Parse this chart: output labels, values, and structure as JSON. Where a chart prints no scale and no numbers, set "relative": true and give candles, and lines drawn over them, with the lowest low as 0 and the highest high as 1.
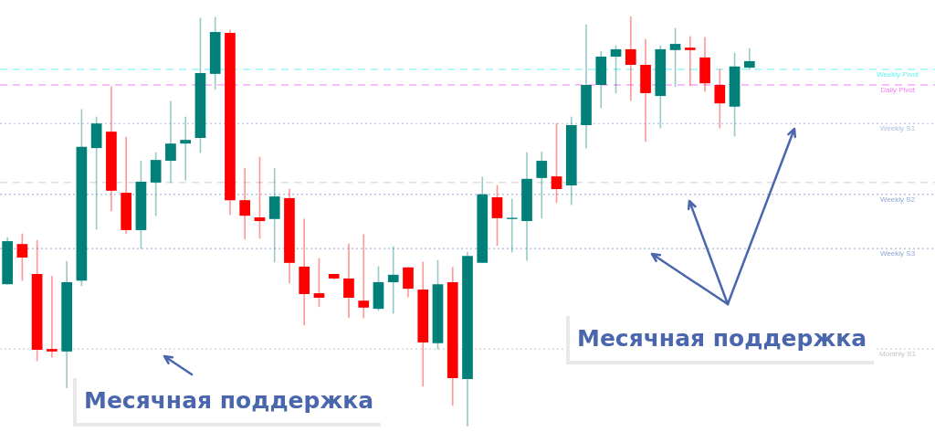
{
  "chart_data": {
    "type": "candlestick",
    "relative": true,
    "legend": false,
    "categories": [
      null,
      null,
      null,
      null,
      null,
      null,
      null,
      null,
      null,
      null,
      null,
      null,
      null,
      null,
      null,
      null,
      null,
      null,
      null,
      null,
      null,
      null,
      null,
      null,
      null,
      null,
      null,
      null,
      null,
      null,
      null,
      null,
      null,
      null,
      null,
      null,
      null,
      null,
      null,
      null,
      null,
      null,
      null,
      null,
      null,
      null,
      null,
      null,
      null,
      null,
      null,
      null,
      null,
      null,
      null,
      null,
      null,
      null,
      null,
      null,
      null,
      null,
      null
    ],
    "ohlc": [
      [
        0.347,
        0.461,
        0.347,
        0.452
      ],
      [
        0.445,
        0.47,
        0.356,
        0.412
      ],
      [
        0.372,
        0.454,
        0.16,
        0.187
      ],
      [
        0.189,
        0.367,
        0.169,
        0.183
      ],
      [
        0.183,
        0.403,
        0.094,
        0.352
      ],
      [
        0.356,
        0.773,
        0.343,
        0.682
      ],
      [
        0.679,
        0.755,
        0.481,
        0.739
      ],
      [
        0.719,
        0.829,
        0.526,
        0.575
      ],
      [
        0.57,
        0.706,
        0.47,
        0.479
      ],
      [
        0.479,
        0.648,
        0.434,
        0.597
      ],
      [
        0.595,
        0.668,
        0.514,
        0.65
      ],
      [
        0.648,
        0.793,
        0.595,
        0.69
      ],
      [
        0.69,
        0.755,
        0.601,
        0.699
      ],
      [
        0.704,
        0.996,
        0.668,
        0.862
      ],
      [
        0.86,
        0.998,
        0.822,
        0.962
      ],
      [
        0.96,
        0.967,
        0.517,
        0.552
      ],
      [
        0.552,
        0.63,
        0.457,
        0.514
      ],
      [
        0.51,
        0.657,
        0.459,
        0.501
      ],
      [
        0.506,
        0.63,
        0.401,
        0.561
      ],
      [
        0.557,
        0.579,
        0.35,
        0.399
      ],
      [
        0.39,
        0.506,
        0.247,
        0.323
      ],
      [
        0.325,
        0.41,
        0.292,
        0.314
      ],
      [
        0.372,
        0.372,
        0.359,
        0.361
      ],
      [
        0.361,
        0.445,
        0.265,
        0.314
      ],
      [
        0.307,
        0.468,
        0.265,
        0.29
      ],
      [
        0.287,
        0.39,
        0.283,
        0.352
      ],
      [
        0.352,
        0.439,
        0.276,
        0.37
      ],
      [
        0.388,
        0.388,
        0.316,
        0.336
      ],
      [
        0.334,
        0.401,
        0.098,
        0.205
      ],
      [
        0.203,
        0.405,
        0.189,
        0.347
      ],
      [
        0.352,
        0.388,
        0.051,
        0.118
      ],
      [
        0.116,
        0.425,
        0,
        0.416
      ],
      [
        0.399,
        0.608,
        0.399,
        0.566
      ],
      [
        0.559,
        0.588,
        0.441,
        0.508
      ],
      [
        0.506,
        0.555,
        0.425,
        0.509
      ],
      [
        0.501,
        0.668,
        0.405,
        0.604
      ],
      [
        0.606,
        0.67,
        0.508,
        0.648
      ],
      [
        0.61,
        0.739,
        0.546,
        0.579
      ],
      [
        0.588,
        0.755,
        0.541,
        0.735
      ],
      [
        0.735,
        0.98,
        0.679,
        0.833
      ],
      [
        0.833,
        0.915,
        0.777,
        0.902
      ],
      [
        0.902,
        0.929,
        0.813,
        0.92
      ],
      [
        0.92,
        1,
        0.795,
        0.882
      ],
      [
        0.882,
        0.944,
        0.695,
        0.813
      ],
      [
        0.806,
        0.929,
        0.728,
        0.92
      ],
      [
        0.918,
        0.971,
        0.829,
        0.933
      ],
      [
        0.924,
        0.951,
        0.831,
        0.918
      ],
      [
        0.9,
        0.949,
        0.817,
        0.837
      ],
      [
        0.833,
        0.871,
        0.728,
        0.788
      ],
      [
        0.78,
        0.911,
        0.708,
        0.878
      ],
      [
        0.875,
        0.922,
        0.871,
        0.891
      ],
      null,
      null,
      null,
      null,
      null,
      null,
      null,
      null,
      null,
      null,
      null,
      null
    ],
    "colors": [
      "#008079",
      "#ff0000",
      "#ff0000",
      "#ff0000",
      "#008079",
      "#008079",
      "#008079",
      "#ff0000",
      "#ff0000",
      "#008079",
      "#008079",
      "#008079",
      "#008079",
      "#008079",
      "#008079",
      "#ff0000",
      "#ff0000",
      "#ff0000",
      "#008079",
      "#ff0000",
      "#ff0000",
      "#ff0000",
      "#ff0000",
      "#ff0000",
      "#ff0000",
      "#008079",
      "#008079",
      "#ff0000",
      "#ff0000",
      "#008079",
      "#ff0000",
      "#008079",
      "#008079",
      "#ff0000",
      "#008079",
      "#008079",
      "#008079",
      "#ff0000",
      "#008079",
      "#008079",
      "#008079",
      "#008079",
      "#ff0000",
      "#ff0000",
      "#008079",
      "#008079",
      "#ff0000",
      "#ff0000",
      "#ff0000",
      "#008079",
      "#008079",
      null,
      null,
      null,
      null,
      null,
      null,
      null,
      null,
      null,
      null,
      null,
      null
    ],
    "ref_lines": [
      {
        "axis": "y",
        "value": 0.871,
        "label": "Weekly Pivot",
        "color": "#66f2f5",
        "line_style": "dashed"
      },
      {
        "axis": "y",
        "value": 0.833,
        "label": "Daily Pivot",
        "color": "#f27ef2",
        "line_style": "dashed"
      },
      {
        "axis": "y",
        "value": 0.739,
        "label": "Weekly S1",
        "color": "#a9bedf",
        "line_style": "dotted"
      },
      {
        "axis": "y",
        "value": 0.595,
        "color": "#cfcfcf",
        "line_style": "dashed"
      },
      {
        "axis": "y",
        "value": 0.566,
        "label": "Weekly S2",
        "color": "#8ea6d3",
        "line_style": "dotted"
      },
      {
        "axis": "y",
        "value": 0.434,
        "label": "Weekly S3",
        "color": "#8ea6d3",
        "line_style": "dotted"
      },
      {
        "axis": "y",
        "value": 0.189,
        "label": "Monthly S1",
        "color": "#c4c4c4",
        "line_style": "dotted"
      }
    ],
    "annotations": [
      "Месячная поддержка",
      "Месячная поддержка"
    ]
  }
}
